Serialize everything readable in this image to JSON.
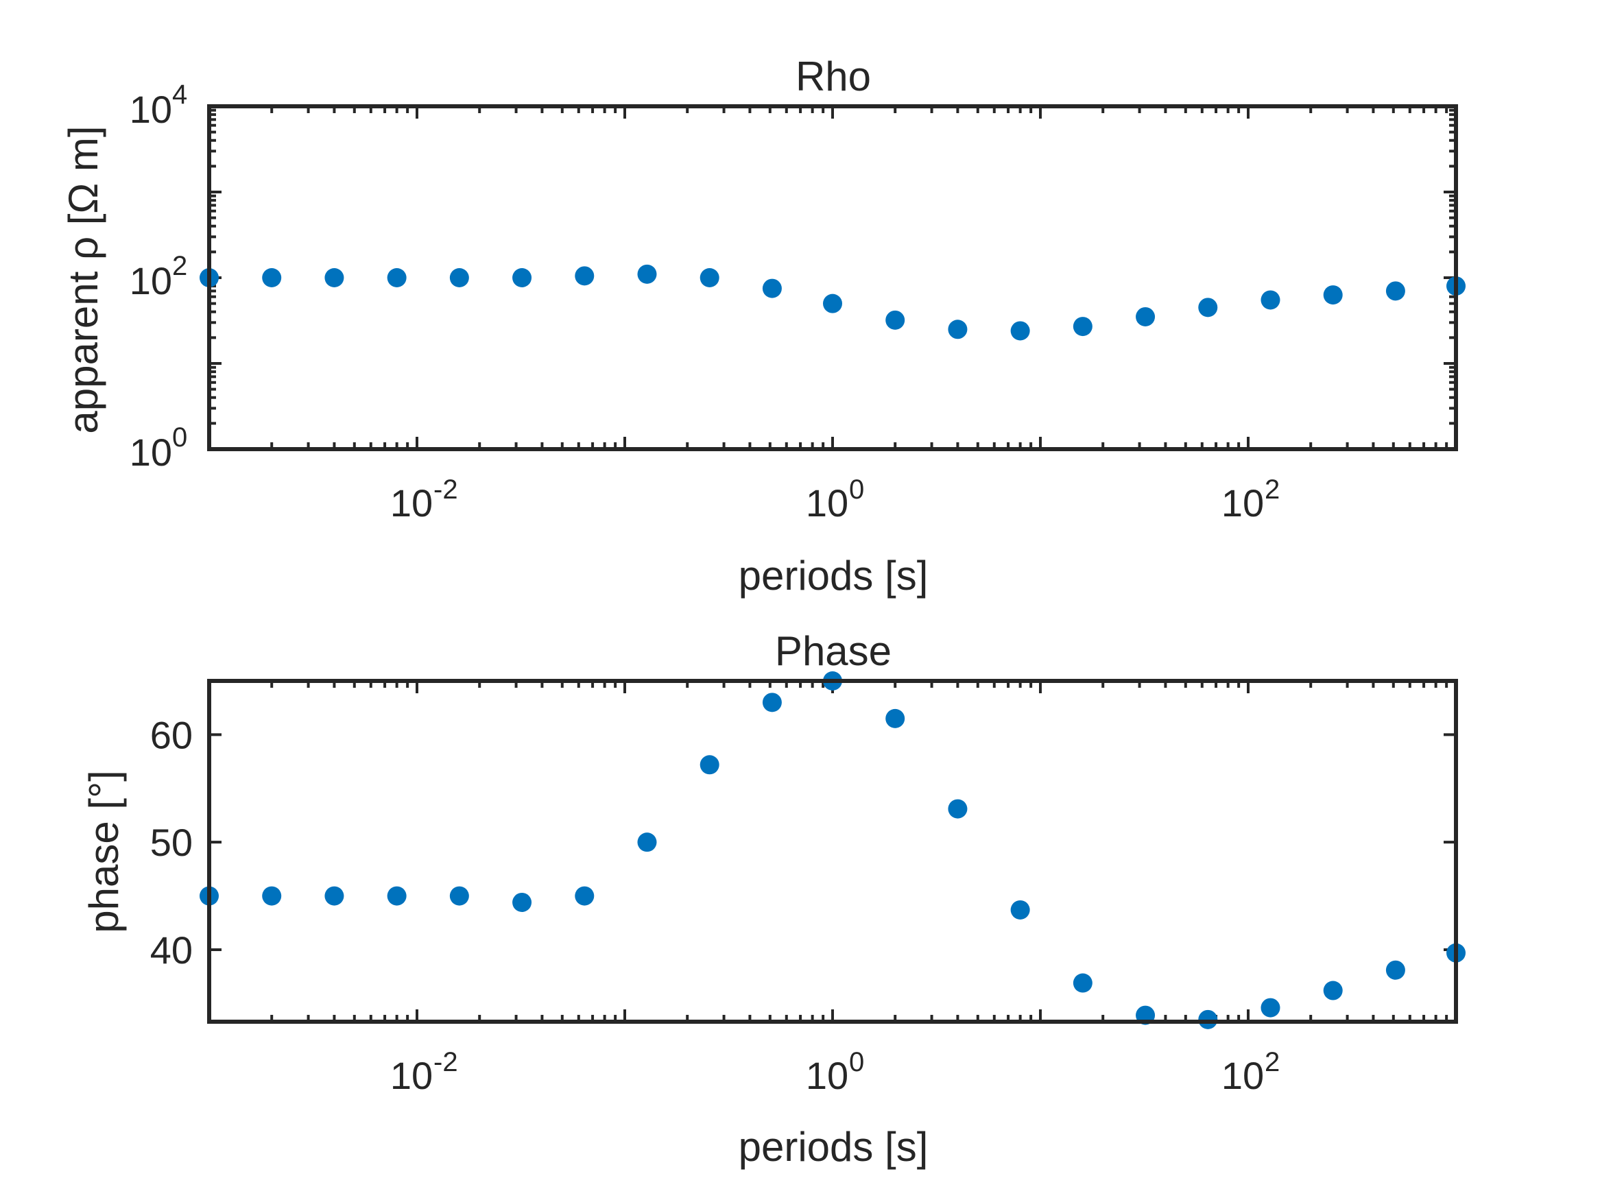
{
  "colors": {
    "marker": "#0072BD",
    "axes": "#262626",
    "background": "#ffffff"
  },
  "chart_data": [
    {
      "type": "scatter",
      "title": "Rho",
      "xlabel": "periods [s]",
      "ylabel": "apparent ρ [Ω m]",
      "xscale": "log",
      "yscale": "log",
      "xlim": [
        0.001,
        1000
      ],
      "ylim": [
        1,
        10000
      ],
      "xticks": [
        {
          "base": "10",
          "exp": "-2"
        },
        {
          "base": "10",
          "exp": "0"
        },
        {
          "base": "10",
          "exp": "2"
        }
      ],
      "yticks": [
        {
          "base": "10",
          "exp": "0"
        },
        {
          "base": "10",
          "exp": "2"
        },
        {
          "base": "10",
          "exp": "4"
        }
      ],
      "grid": false,
      "legend": "none",
      "series": [
        {
          "x": [
            0.001,
            0.002,
            0.004,
            0.008,
            0.016,
            0.032,
            0.064,
            0.128,
            0.256,
            0.512,
            1.0,
            2.0,
            4.0,
            8.0,
            16,
            32,
            64,
            128,
            256,
            512,
            1000
          ],
          "y": [
            100,
            100,
            100,
            100,
            100,
            100,
            105,
            110,
            100,
            75,
            50,
            32,
            25,
            24,
            27,
            35,
            45,
            55,
            63,
            70,
            80
          ]
        }
      ]
    },
    {
      "type": "scatter",
      "title": "Phase",
      "xlabel": "periods [s]",
      "ylabel": "phase [°]",
      "xscale": "log",
      "yscale": "linear",
      "xlim": [
        0.001,
        1000
      ],
      "ylim": [
        33.3,
        65
      ],
      "xticks": [
        {
          "base": "10",
          "exp": "-2"
        },
        {
          "base": "10",
          "exp": "0"
        },
        {
          "base": "10",
          "exp": "2"
        }
      ],
      "yticks": [
        "40",
        "50",
        "60"
      ],
      "grid": false,
      "legend": "none",
      "series": [
        {
          "x": [
            0.001,
            0.002,
            0.004,
            0.008,
            0.016,
            0.032,
            0.064,
            0.128,
            0.256,
            0.512,
            1.0,
            2.0,
            4.0,
            8.0,
            16,
            32,
            64,
            128,
            256,
            512,
            1000
          ],
          "y": [
            45,
            45,
            45,
            45,
            45,
            44.4,
            45,
            50,
            57.2,
            63,
            65,
            61.5,
            53.1,
            43.7,
            36.9,
            33.9,
            33.5,
            34.6,
            36.2,
            38.1,
            39.7
          ]
        }
      ]
    }
  ]
}
